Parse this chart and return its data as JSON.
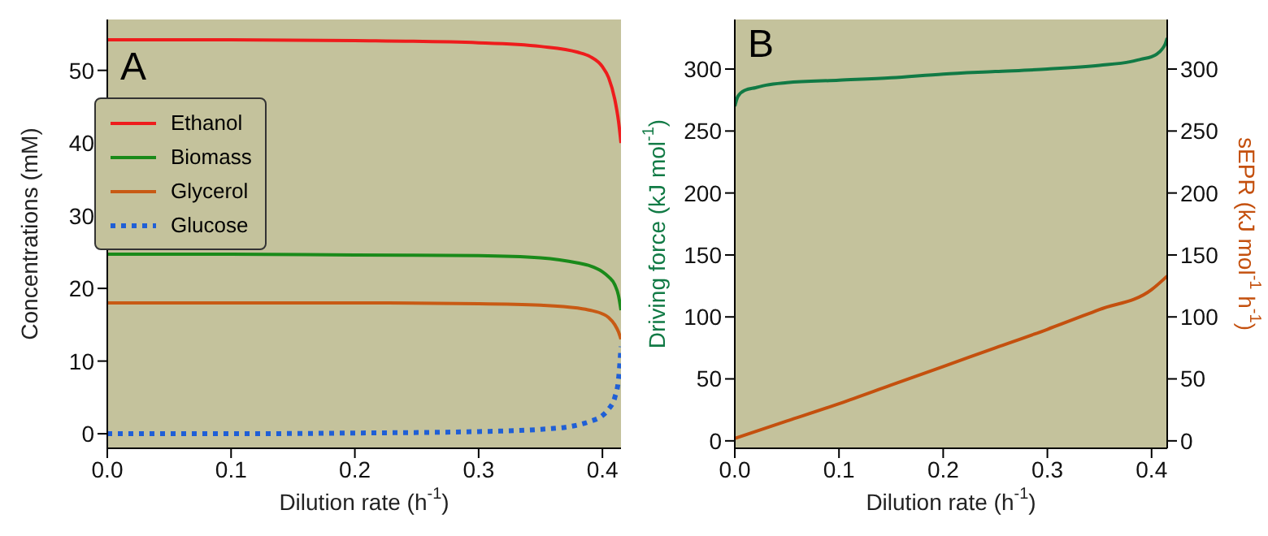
{
  "chart_data": [
    {
      "type": "line",
      "title": "A",
      "xlabel": "Dilution rate (h$^{-1}$)",
      "ylabel": "Concentrations (mM)",
      "xlim": [
        0,
        0.415
      ],
      "ylim": [
        -2,
        57
      ],
      "xticks": [
        {
          "value": 0,
          "label": "0.0"
        },
        {
          "value": 0.1,
          "label": "0.1"
        },
        {
          "value": 0.2,
          "label": "0.2"
        },
        {
          "value": 0.3,
          "label": "0.3"
        },
        {
          "value": 0.4,
          "label": "0.4"
        }
      ],
      "yticks": [
        0,
        10,
        20,
        30,
        40,
        50
      ],
      "legend": "top left",
      "series": [
        {
          "name": "Ethanol",
          "color": "#ee1c1c",
          "x": [
            0,
            0.1,
            0.2,
            0.3,
            0.35,
            0.38,
            0.39,
            0.4,
            0.405,
            0.41,
            0.413,
            0.415
          ],
          "values": [
            54.2,
            54.2,
            54.1,
            53.8,
            53.3,
            52.5,
            51.9,
            50.5,
            49,
            46,
            43,
            40
          ]
        },
        {
          "name": "Biomass",
          "color": "#1a8a1a",
          "x": [
            0,
            0.1,
            0.2,
            0.3,
            0.35,
            0.38,
            0.39,
            0.4,
            0.405,
            0.41,
            0.413,
            0.415
          ],
          "values": [
            24.7,
            24.7,
            24.6,
            24.5,
            24.2,
            23.5,
            23.1,
            22.3,
            21.6,
            20.5,
            19,
            17
          ]
        },
        {
          "name": "Glycerol",
          "color": "#c85a14",
          "x": [
            0,
            0.1,
            0.2,
            0.3,
            0.35,
            0.38,
            0.39,
            0.4,
            0.405,
            0.41,
            0.413,
            0.415
          ],
          "values": [
            18,
            18,
            18,
            17.9,
            17.7,
            17.3,
            17,
            16.5,
            16,
            15,
            14,
            13
          ]
        },
        {
          "name": "Glucose",
          "color": "#1f5fd6",
          "line_style": "dotted",
          "x": [
            0,
            0.1,
            0.2,
            0.3,
            0.35,
            0.38,
            0.39,
            0.4,
            0.405,
            0.41,
            0.413,
            0.415
          ],
          "values": [
            0,
            0,
            0.1,
            0.3,
            0.6,
            1.2,
            1.7,
            2.5,
            3.4,
            5,
            7.5,
            12
          ]
        }
      ]
    },
    {
      "type": "line",
      "title": "B",
      "xlabel": "Dilution rate (h$^{-1}$)",
      "ylabel": "Driving force (kJ mol$^{-1}$)",
      "y2label": "sEPR (kJ mol$^{-1}$ h$^{-1}$)",
      "xlim": [
        0,
        0.415
      ],
      "ylim": [
        -6,
        340
      ],
      "y2lim": [
        -6,
        340
      ],
      "xticks": [
        {
          "value": 0,
          "label": "0.0"
        },
        {
          "value": 0.1,
          "label": "0.1"
        },
        {
          "value": 0.2,
          "label": "0.2"
        },
        {
          "value": 0.3,
          "label": "0.3"
        },
        {
          "value": 0.4,
          "label": "0.4"
        }
      ],
      "yticks": [
        0,
        50,
        100,
        150,
        200,
        250,
        300
      ],
      "y2ticks": [
        0,
        50,
        100,
        150,
        200,
        250,
        300
      ],
      "series": [
        {
          "color": "#117a45",
          "x": [
            0,
            0.003,
            0.01,
            0.02,
            0.03,
            0.05,
            0.1,
            0.15,
            0.2,
            0.25,
            0.3,
            0.35,
            0.38,
            0.39,
            0.4,
            0.405,
            0.41,
            0.413,
            0.415
          ],
          "values": [
            270,
            278,
            283,
            285,
            287,
            289,
            291,
            293,
            296,
            298,
            300,
            303,
            306,
            308,
            310,
            312,
            316,
            320,
            325
          ]
        },
        {
          "color": "#c4500e",
          "axis": "y2",
          "x": [
            0,
            0.05,
            0.1,
            0.15,
            0.2,
            0.25,
            0.3,
            0.35,
            0.4,
            0.415
          ],
          "values": [
            2,
            16,
            30,
            45,
            60,
            75,
            90,
            106,
            122,
            133
          ]
        }
      ]
    }
  ]
}
